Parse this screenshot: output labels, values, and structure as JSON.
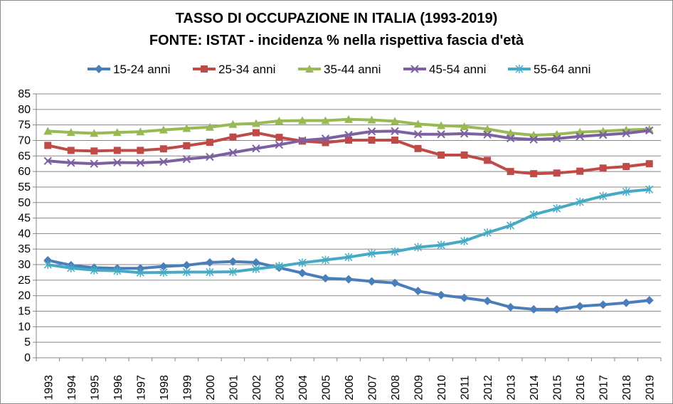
{
  "chart_data": {
    "type": "line",
    "title": "TASSO DI OCCUPAZIONE IN ITALIA (1993-2019)",
    "subtitle": "FONTE: ISTAT - incidenza % nella rispettiva fascia d'età",
    "xlabel": "",
    "ylabel": "",
    "ylim": [
      0,
      85
    ],
    "ytick_step": 5,
    "grid": "horizontal",
    "legend_position": "top",
    "categories": [
      "1993",
      "1994",
      "1995",
      "1996",
      "1997",
      "1998",
      "1999",
      "2000",
      "2001",
      "2002",
      "2003",
      "2004",
      "2005",
      "2006",
      "2007",
      "2008",
      "2009",
      "2010",
      "2011",
      "2012",
      "2013",
      "2014",
      "2015",
      "2016",
      "2017",
      "2018",
      "2019"
    ],
    "series": [
      {
        "name": "15-24 anni",
        "color": "#4a7ebb",
        "marker": "diamond",
        "values": [
          31.4,
          29.8,
          29.0,
          28.8,
          28.8,
          29.4,
          29.8,
          30.7,
          31.0,
          30.7,
          29.0,
          27.3,
          25.6,
          25.3,
          24.6,
          24.1,
          21.5,
          20.2,
          19.3,
          18.3,
          16.3,
          15.6,
          15.6,
          16.6,
          17.1,
          17.7,
          18.5
        ]
      },
      {
        "name": "25-34 anni",
        "color": "#be4b48",
        "marker": "square",
        "values": [
          68.4,
          66.8,
          66.6,
          66.8,
          66.8,
          67.3,
          68.3,
          69.4,
          71.1,
          72.5,
          71.0,
          69.8,
          69.3,
          70.1,
          70.1,
          70.1,
          67.4,
          65.3,
          65.3,
          63.6,
          60.0,
          59.3,
          59.5,
          60.1,
          61.1,
          61.6,
          62.5
        ]
      },
      {
        "name": "35-44 anni",
        "color": "#98b954",
        "marker": "triangle",
        "values": [
          73.0,
          72.6,
          72.3,
          72.6,
          72.8,
          73.4,
          73.9,
          74.3,
          75.2,
          75.5,
          76.3,
          76.4,
          76.4,
          76.8,
          76.6,
          76.2,
          75.3,
          74.8,
          74.5,
          73.7,
          72.4,
          71.7,
          72.0,
          72.7,
          73.0,
          73.4,
          73.6
        ]
      },
      {
        "name": "45-54 anni",
        "color": "#7d60a0",
        "marker": "x",
        "values": [
          63.4,
          62.8,
          62.5,
          62.9,
          62.8,
          63.1,
          64.0,
          64.7,
          66.1,
          67.4,
          68.6,
          70.0,
          70.6,
          71.8,
          72.9,
          73.0,
          72.0,
          72.0,
          72.2,
          71.9,
          70.7,
          70.3,
          70.6,
          71.3,
          71.8,
          72.3,
          73.2
        ]
      },
      {
        "name": "55-64 anni",
        "color": "#46aac5",
        "marker": "star",
        "values": [
          30.0,
          28.9,
          28.2,
          28.0,
          27.4,
          27.5,
          27.6,
          27.6,
          27.7,
          28.6,
          29.5,
          30.6,
          31.5,
          32.4,
          33.6,
          34.2,
          35.6,
          36.3,
          37.6,
          40.3,
          42.6,
          46.1,
          48.1,
          50.2,
          52.1,
          53.5,
          54.2
        ]
      }
    ]
  }
}
